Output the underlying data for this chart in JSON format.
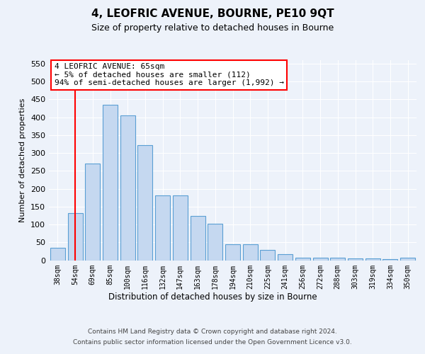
{
  "title": "4, LEOFRIC AVENUE, BOURNE, PE10 9QT",
  "subtitle": "Size of property relative to detached houses in Bourne",
  "xlabel": "Distribution of detached houses by size in Bourne",
  "ylabel": "Number of detached properties",
  "categories": [
    "38sqm",
    "54sqm",
    "69sqm",
    "85sqm",
    "100sqm",
    "116sqm",
    "132sqm",
    "147sqm",
    "163sqm",
    "178sqm",
    "194sqm",
    "210sqm",
    "225sqm",
    "241sqm",
    "256sqm",
    "272sqm",
    "288sqm",
    "303sqm",
    "319sqm",
    "334sqm",
    "350sqm"
  ],
  "values": [
    35,
    132,
    270,
    435,
    405,
    323,
    182,
    182,
    124,
    103,
    45,
    45,
    29,
    16,
    6,
    6,
    7,
    5,
    4,
    3,
    6
  ],
  "bar_color": "#c5d8f0",
  "bar_edge_color": "#5a9fd4",
  "vline_color": "red",
  "vline_position": 1.5,
  "annotation_text": "4 LEOFRIC AVENUE: 65sqm\n← 5% of detached houses are smaller (112)\n94% of semi-detached houses are larger (1,992) →",
  "annotation_box_color": "white",
  "annotation_box_edge": "red",
  "ylim": [
    0,
    560
  ],
  "yticks": [
    0,
    50,
    100,
    150,
    200,
    250,
    300,
    350,
    400,
    450,
    500,
    550
  ],
  "footer_line1": "Contains HM Land Registry data © Crown copyright and database right 2024.",
  "footer_line2": "Contains public sector information licensed under the Open Government Licence v3.0.",
  "background_color": "#edf2fa",
  "plot_bg_color": "#edf2fa",
  "title_fontsize": 11,
  "subtitle_fontsize": 9,
  "ylabel_fontsize": 8,
  "ytick_fontsize": 8,
  "xtick_fontsize": 7,
  "xlabel_fontsize": 8.5,
  "footer_fontsize": 6.5,
  "ann_fontsize": 8
}
